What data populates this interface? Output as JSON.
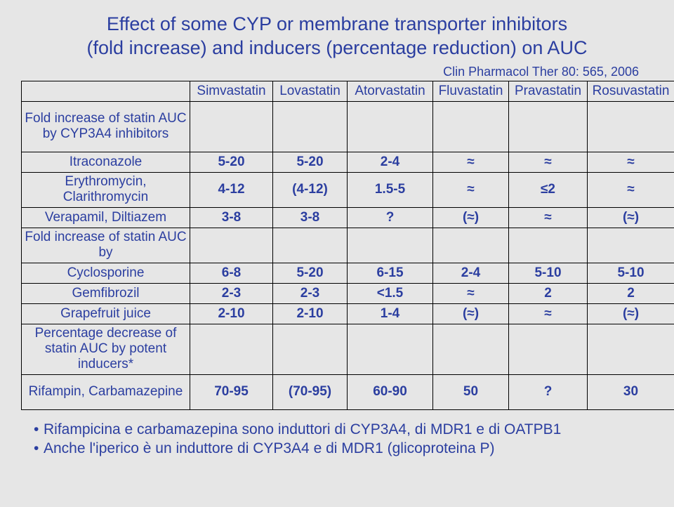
{
  "title_line1": "Effect of some CYP or membrane transporter inhibitors",
  "title_line2": "(fold increase) and inducers (percentage reduction) on AUC",
  "citation": "Clin Pharmacol Ther 80: 565, 2006",
  "columns": [
    "Simvastatin",
    "Lovastatin",
    "Atorvastatin",
    "Fluvastatin",
    "Pravastatin",
    "Rosuvastatin"
  ],
  "section1": "Fold increase of statin AUC by CYP3A4 inhibitors",
  "row_itraconazole": {
    "label": "Itraconazole",
    "cells": [
      "5-20",
      "5-20",
      "2-4",
      "≈",
      "≈",
      "≈"
    ]
  },
  "row_erythro": {
    "label": "Erythromycin, Clarithromycin",
    "cells": [
      "4-12",
      "(4-12)",
      "1.5-5",
      "≈",
      "≤2",
      "≈"
    ]
  },
  "row_verapamil": {
    "label": "Verapamil, Diltiazem",
    "cells": [
      "3-8",
      "3-8",
      "?",
      "(≈)",
      "≈",
      "(≈)"
    ]
  },
  "section2": "Fold increase of statin AUC by",
  "row_cyclo": {
    "label": "Cyclosporine",
    "cells": [
      "6-8",
      "5-20",
      "6-15",
      "2-4",
      "5-10",
      "5-10"
    ]
  },
  "row_gem": {
    "label": "Gemfibrozil",
    "cells": [
      "2-3",
      "2-3",
      "<1.5",
      "≈",
      "2",
      "2"
    ]
  },
  "row_grape": {
    "label": "Grapefruit juice",
    "cells": [
      "2-10",
      "2-10",
      "1-4",
      "(≈)",
      "≈",
      "(≈)"
    ]
  },
  "section3": "Percentage decrease of statin AUC by potent inducers*",
  "row_rif": {
    "label": "Rifampin, Carbamazepine",
    "cells": [
      "70-95",
      "(70-95)",
      "60-90",
      "50",
      "?",
      "30"
    ]
  },
  "bullet1": "Rifampicina e carbamazepina sono induttori di CYP3A4, di MDR1 e di OATPB1",
  "bullet2": "Anche l'iperico è un induttore di CYP3A4 e di MDR1 (glicoproteina P)"
}
